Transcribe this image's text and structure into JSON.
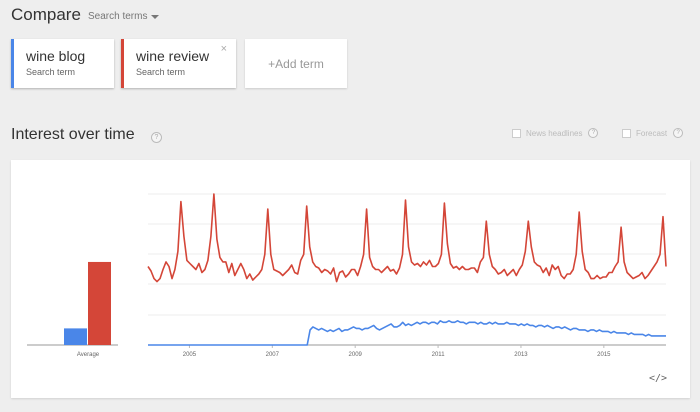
{
  "header": {
    "title": "Compare",
    "search_terms_label": "Search terms"
  },
  "terms": [
    {
      "name": "wine blog",
      "sublabel": "Search term",
      "color": "#4a86e8"
    },
    {
      "name": "wine review",
      "sublabel": "Search term",
      "color": "#d44638"
    }
  ],
  "add_term_label": "+Add term",
  "remove_icon": "×",
  "section": {
    "title": "Interest over time",
    "help_icon": "?",
    "options": [
      {
        "label": "News headlines"
      },
      {
        "label": "Forecast"
      }
    ]
  },
  "embed_icon": "</>",
  "chart_data": {
    "type": "line",
    "x_ticks": [
      "2005",
      "2007",
      "2009",
      "2011",
      "2013",
      "2015"
    ],
    "x_range": [
      2004,
      2016.5
    ],
    "y_range": [
      0,
      100
    ],
    "grid": true,
    "series": [
      {
        "name": "wine review",
        "color": "#d44638",
        "values": [
          52,
          49,
          44,
          42,
          44,
          50,
          55,
          52,
          44,
          50,
          62,
          95,
          72,
          56,
          54,
          52,
          50,
          54,
          48,
          50,
          56,
          72,
          100,
          70,
          58,
          55,
          55,
          48,
          54,
          46,
          50,
          54,
          50,
          44,
          47,
          43,
          45,
          47,
          50,
          60,
          90,
          60,
          50,
          49,
          48,
          46,
          48,
          50,
          53,
          48,
          47,
          56,
          60,
          92,
          65,
          55,
          52,
          51,
          48,
          50,
          49,
          47,
          51,
          42,
          48,
          49,
          45,
          47,
          50,
          50,
          46,
          52,
          60,
          90,
          58,
          52,
          50,
          50,
          48,
          50,
          52,
          49,
          50,
          47,
          51,
          60,
          96,
          65,
          55,
          53,
          54,
          52,
          55,
          53,
          56,
          52,
          52,
          54,
          60,
          94,
          67,
          54,
          51,
          52,
          50,
          52,
          50,
          50,
          51,
          51,
          48,
          55,
          58,
          82,
          60,
          52,
          50,
          47,
          48,
          50,
          46,
          48,
          50,
          46,
          50,
          53,
          62,
          82,
          65,
          55,
          53,
          52,
          48,
          51,
          46,
          53,
          50,
          52,
          46,
          44,
          47,
          47,
          50,
          60,
          88,
          62,
          50,
          48,
          44,
          44,
          46,
          44,
          45,
          45,
          48,
          48,
          52,
          55,
          78,
          55,
          48,
          46,
          44,
          45,
          46,
          48,
          44,
          46,
          49,
          52,
          55,
          60,
          85,
          52
        ]
      },
      {
        "name": "wine blog",
        "color": "#4a86e8",
        "values": [
          0,
          0,
          0,
          0,
          0,
          0,
          0,
          0,
          0,
          0,
          0,
          0,
          0,
          0,
          0,
          0,
          0,
          0,
          0,
          0,
          0,
          0,
          0,
          0,
          0,
          0,
          0,
          0,
          0,
          0,
          0,
          0,
          0,
          0,
          0,
          0,
          0,
          0,
          0,
          0,
          0,
          0,
          0,
          0,
          0,
          0,
          0,
          0,
          0,
          0,
          0,
          0,
          0,
          0,
          0,
          0,
          10,
          12,
          11,
          10,
          11,
          10,
          9,
          10,
          9,
          10,
          11,
          9,
          10,
          10,
          11,
          12,
          11,
          11,
          10,
          11,
          11,
          12,
          13,
          11,
          10,
          11,
          12,
          13,
          14,
          12,
          12,
          13,
          15,
          13,
          14,
          13,
          14,
          15,
          14,
          15,
          15,
          14,
          15,
          15,
          14,
          16,
          15,
          15,
          16,
          15,
          15,
          16,
          15,
          15,
          14,
          15,
          15,
          15,
          14,
          15,
          14,
          14,
          15,
          14,
          15,
          14,
          14,
          14,
          15,
          14,
          14,
          14,
          13,
          14,
          13,
          14,
          13,
          13,
          12,
          13,
          13,
          12,
          13,
          12,
          11,
          12,
          12,
          11,
          12,
          11,
          10,
          11,
          11,
          10,
          10,
          10,
          9,
          10,
          10,
          9,
          10,
          9,
          9,
          9,
          8,
          9,
          8,
          8,
          8,
          8,
          7,
          8,
          7,
          7,
          7,
          7,
          6,
          7,
          6,
          6,
          6,
          6,
          6,
          6
        ]
      }
    ],
    "average": {
      "label": "Average",
      "values": [
        {
          "name": "wine blog",
          "value": 11
        },
        {
          "name": "wine review",
          "value": 55
        }
      ]
    }
  }
}
